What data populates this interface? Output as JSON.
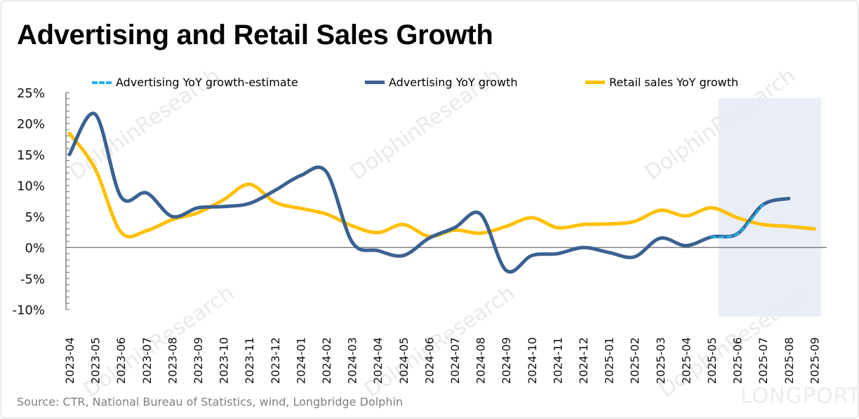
{
  "chart_data": {
    "type": "line",
    "title": "Advertising and Retail Sales Growth",
    "xlabel": "",
    "ylabel": "",
    "ylim": [
      -10,
      25
    ],
    "yticks": [
      "25%",
      "20%",
      "15%",
      "10%",
      "5%",
      "0%",
      "-5%",
      "-10%"
    ],
    "ytick_values": [
      25,
      20,
      15,
      10,
      5,
      0,
      -5,
      -10
    ],
    "grid": false,
    "legend_position": "top",
    "highlight_range": [
      "2025-05",
      "2025-09"
    ],
    "categories": [
      "2023-04",
      "2023-05",
      "2023-06",
      "2023-07",
      "2023-08",
      "2023-09",
      "2023-10",
      "2023-11",
      "2023-12",
      "2024-01",
      "2024-02",
      "2024-03",
      "2024-04",
      "2024-05",
      "2024-06",
      "2024-07",
      "2024-08",
      "2024-09",
      "2024-10",
      "2024-11",
      "2024-12",
      "2025-01",
      "2025-02",
      "2025-03",
      "2025-04",
      "2025-05",
      "2025-06",
      "2025-07",
      "2025-08",
      "2025-09"
    ],
    "series": [
      {
        "name": "Advertising YoY growth-estimate",
        "color": "#1fb0e8",
        "style": "dashed",
        "values": [
          null,
          null,
          null,
          null,
          null,
          null,
          null,
          null,
          null,
          null,
          null,
          null,
          null,
          null,
          null,
          null,
          null,
          null,
          null,
          null,
          null,
          null,
          null,
          null,
          null,
          1.7,
          2.2,
          6.9,
          null,
          null
        ]
      },
      {
        "name": "Advertising YoY growth",
        "color": "#3a6190",
        "style": "solid",
        "values": [
          15.0,
          21.5,
          8.2,
          8.8,
          5.0,
          6.4,
          6.6,
          7.1,
          9.2,
          11.6,
          12.2,
          0.9,
          -0.5,
          -1.3,
          1.5,
          3.2,
          5.4,
          -3.7,
          -1.3,
          -1.0,
          0.0,
          -0.8,
          -1.5,
          1.5,
          0.3,
          1.7,
          2.2,
          6.9,
          7.9,
          null
        ]
      },
      {
        "name": "Retail sales YoY growth",
        "color": "#ffc000",
        "style": "solid",
        "values": [
          18.4,
          12.7,
          2.5,
          2.7,
          4.5,
          5.6,
          7.7,
          10.2,
          7.3,
          6.3,
          5.4,
          3.5,
          2.4,
          3.7,
          1.8,
          2.8,
          2.3,
          3.4,
          4.8,
          3.2,
          3.7,
          3.8,
          4.2,
          6.0,
          5.1,
          6.4,
          4.8,
          3.7,
          3.4,
          3.0
        ]
      }
    ]
  },
  "source": "Source: CTR, National Bureau of Statistics, wind, Longbridge Dolphin",
  "watermark": {
    "text": "DolphinResearch",
    "brand": "LONGPORT"
  },
  "colors": {
    "highlight": "#e8ecf4",
    "axis": "#808080"
  }
}
